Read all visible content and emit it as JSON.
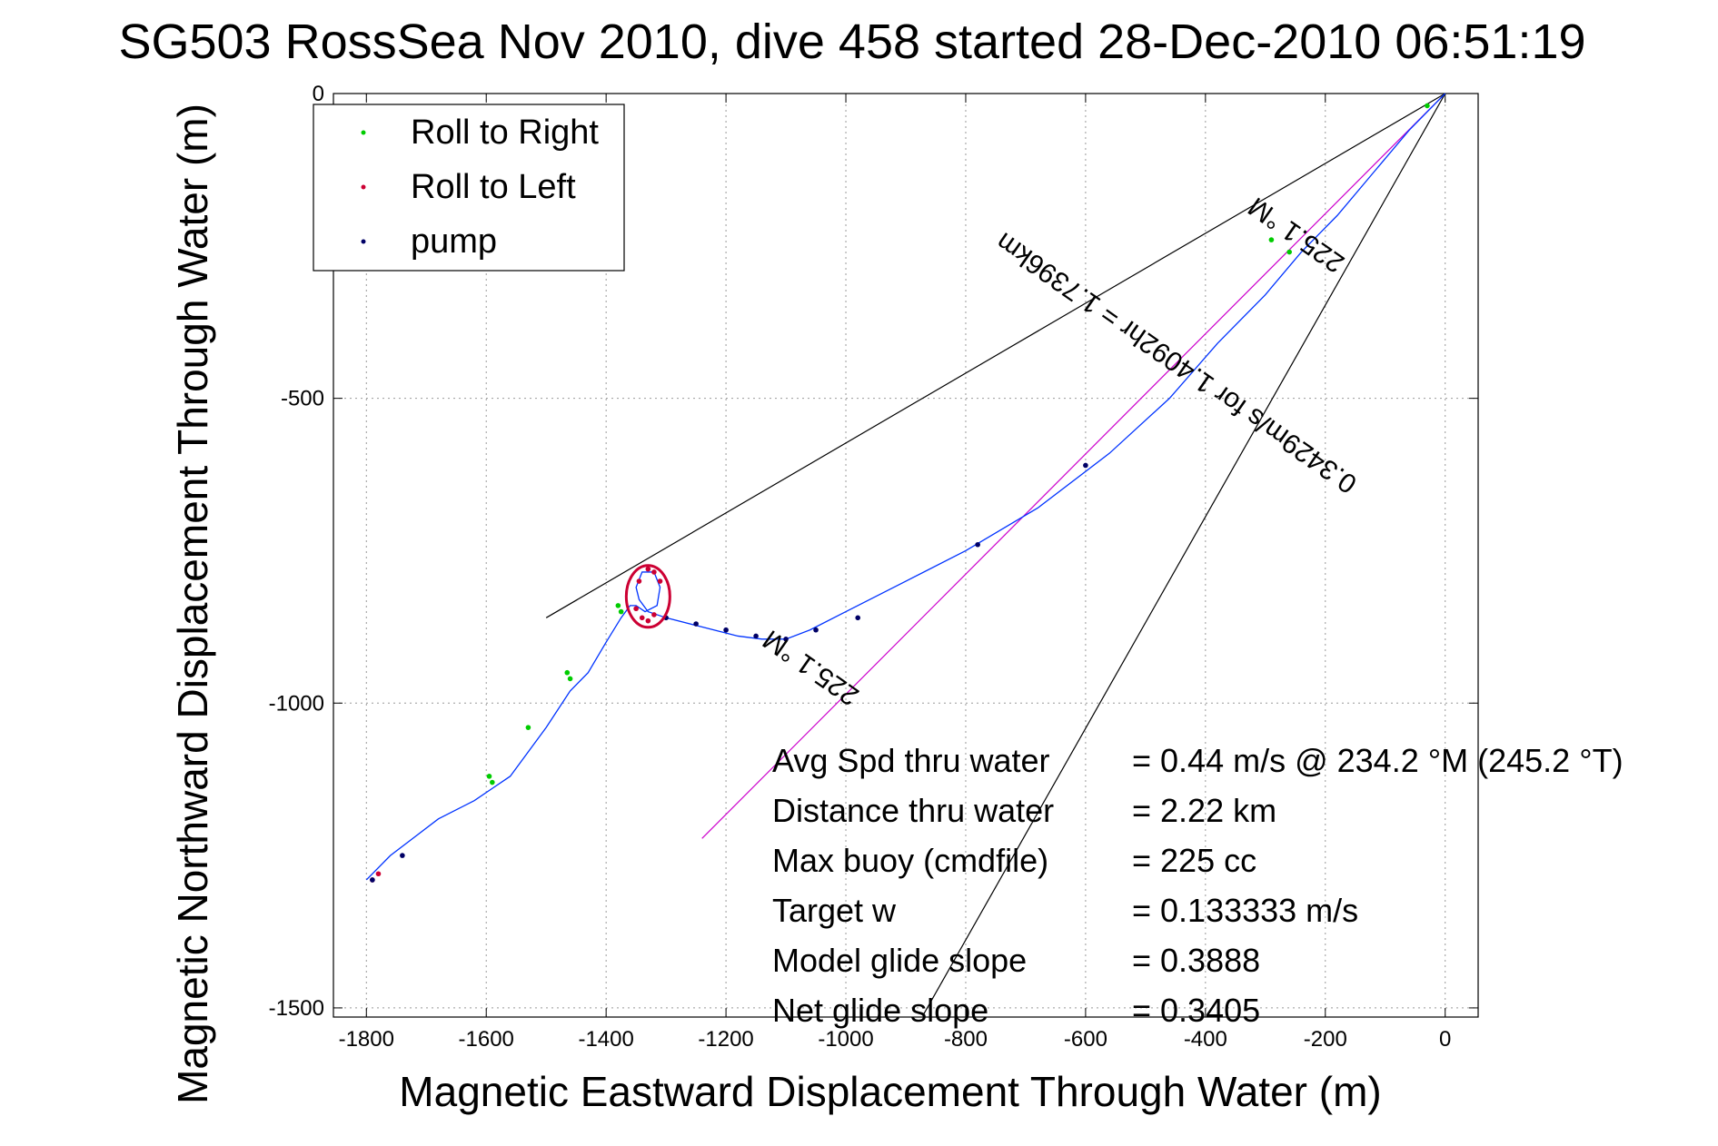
{
  "chart_data": {
    "type": "line",
    "title": "SG503 RossSea Nov 2010, dive 458 started 28-Dec-2010 06:51:19",
    "xlabel": "Magnetic Eastward Displacement Through Water (m)",
    "ylabel": "Magnetic Northward Displacement Through Water (m)",
    "xlim": [
      -1855,
      55
    ],
    "ylim": [
      -1515,
      0
    ],
    "xticks": [
      -1800,
      -1600,
      -1400,
      -1200,
      -1000,
      -800,
      -600,
      -400,
      -200,
      0
    ],
    "yticks": [
      0,
      -500,
      -1000,
      -1500
    ],
    "grid": true,
    "legend": {
      "placement": "top-left",
      "entries": [
        {
          "label": "Roll to Right",
          "color": "#00cc00"
        },
        {
          "label": "Roll to Left",
          "color": "#cc0033"
        },
        {
          "label": "pump",
          "color": "#000066"
        }
      ]
    },
    "series": [
      {
        "type": "track",
        "color": "#0033ff",
        "x": [
          0,
          -60,
          -120,
          -180,
          -240,
          -300,
          -380,
          -460,
          -560,
          -680,
          -800,
          -900,
          -1000,
          -1060,
          -1100,
          -1140,
          -1180,
          -1240,
          -1300,
          -1330,
          -1345,
          -1350,
          -1340,
          -1320,
          -1310,
          -1315,
          -1335,
          -1350,
          -1360,
          -1375,
          -1400,
          -1430,
          -1460,
          -1500,
          -1530,
          -1560,
          -1590,
          -1620,
          -1680,
          -1720,
          -1760,
          -1800
        ],
        "y": [
          0,
          -60,
          -130,
          -200,
          -260,
          -330,
          -410,
          -500,
          -590,
          -680,
          -750,
          -800,
          -850,
          -880,
          -895,
          -895,
          -890,
          -875,
          -860,
          -850,
          -830,
          -810,
          -785,
          -785,
          -810,
          -840,
          -850,
          -840,
          -840,
          -860,
          -900,
          -950,
          -980,
          -1040,
          -1080,
          -1120,
          -1140,
          -1160,
          -1190,
          -1220,
          -1250,
          -1290
        ]
      },
      {
        "name": "Roll to Right",
        "color": "#00cc00",
        "x": [
          -30,
          -260,
          -290,
          -1375,
          -1380,
          -1460,
          -1465,
          -1530,
          -1590,
          -1595
        ],
        "y": [
          -20,
          -260,
          -240,
          -850,
          -840,
          -960,
          -950,
          -1040,
          -1130,
          -1120
        ]
      },
      {
        "name": "Roll to Left",
        "color": "#cc0033",
        "x": [
          -1320,
          -1310,
          -1330,
          -1345,
          -1350,
          -1340,
          -1330,
          -1320,
          -1780,
          -1790
        ],
        "y": [
          -785,
          -800,
          -780,
          -800,
          -845,
          -860,
          -865,
          -855,
          -1280,
          -1290
        ]
      },
      {
        "name": "pump",
        "color": "#000066",
        "x": [
          -1300,
          -1250,
          -1200,
          -1150,
          -1100,
          -1050,
          -980,
          -780,
          -600,
          -1740,
          -1790
        ],
        "y": [
          -860,
          -870,
          -880,
          -890,
          -895,
          -880,
          -860,
          -740,
          -610,
          -1250,
          -1290
        ]
      },
      {
        "type": "heading-line",
        "color": "#cc00cc",
        "x": [
          0,
          -1240
        ],
        "y": [
          0,
          -1222
        ]
      },
      {
        "type": "guide-line",
        "color": "#000000",
        "x": [
          0,
          -1500
        ],
        "y": [
          0,
          -860
        ]
      },
      {
        "type": "guide-line",
        "color": "#000000",
        "x": [
          0,
          -870
        ],
        "y": [
          0,
          -1510
        ]
      }
    ],
    "annotations": [
      {
        "text": "225.1 °M",
        "x": -240,
        "y": -220,
        "angle": 35
      },
      {
        "text": "0.3429m/s for 1.4092hr = 1.7396km",
        "x": -440,
        "y": -430,
        "angle": 35
      },
      {
        "text": "225.1 °M",
        "x": -1050,
        "y": -930,
        "angle": 35
      }
    ],
    "stats": [
      {
        "label": "Avg Spd thru water",
        "value": "=  0.44 m/s @ 234.2 °M (245.2 °T)"
      },
      {
        "label": "Distance thru water",
        "value": "=  2.22 km"
      },
      {
        "label": "Max buoy (cmdfile)",
        "value": "= 225 cc"
      },
      {
        "label": "Target w",
        "value": "= 0.133333 m/s"
      },
      {
        "label": "Model glide slope",
        "value": "= 0.3888"
      },
      {
        "label": "Net glide slope",
        "value": "= 0.3405"
      }
    ]
  }
}
